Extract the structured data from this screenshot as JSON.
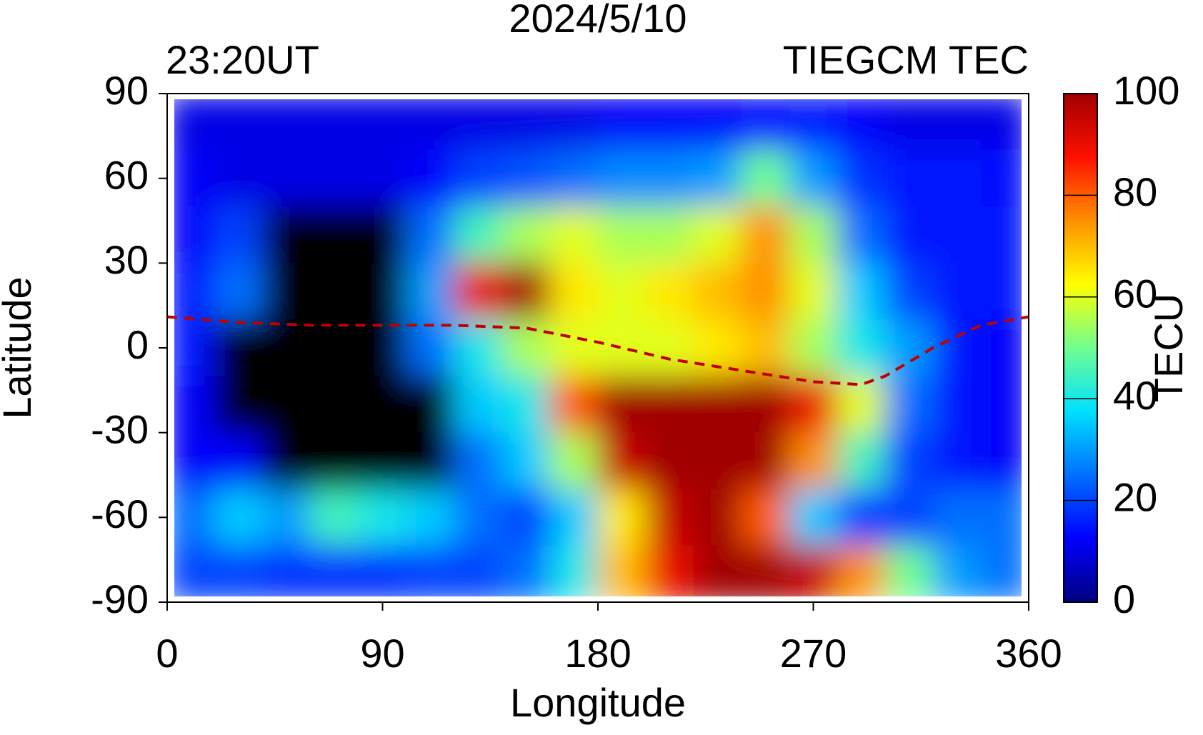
{
  "chart_data": {
    "type": "heatmap",
    "title": "2024/5/10",
    "subtitle_left": "23:20UT",
    "subtitle_right": "TIEGCM TEC",
    "xlabel": "Longitude",
    "ylabel": "Latitude",
    "xlim": [
      0,
      360
    ],
    "xticks": [
      0,
      90,
      180,
      270,
      360
    ],
    "ylim": [
      -90,
      90
    ],
    "yticks": [
      -90,
      -60,
      -30,
      0,
      30,
      60,
      90
    ],
    "x": [
      10,
      30,
      50,
      70,
      90,
      110,
      130,
      150,
      170,
      190,
      210,
      230,
      250,
      270,
      290,
      310,
      330,
      350
    ],
    "y": [
      80,
      60,
      40,
      20,
      0,
      -20,
      -40,
      -60,
      -80
    ],
    "z": [
      [
        10,
        10,
        10,
        10,
        10,
        10,
        10,
        10,
        10,
        12,
        12,
        12,
        14,
        15,
        12,
        10,
        10,
        10
      ],
      [
        12,
        10,
        10,
        10,
        10,
        12,
        20,
        22,
        25,
        28,
        28,
        30,
        50,
        30,
        18,
        15,
        15,
        14
      ],
      [
        12,
        20,
        null,
        null,
        null,
        25,
        45,
        55,
        60,
        55,
        55,
        60,
        75,
        55,
        25,
        15,
        15,
        15
      ],
      [
        15,
        25,
        null,
        null,
        null,
        30,
        90,
        100,
        65,
        60,
        65,
        70,
        75,
        60,
        35,
        20,
        15,
        15
      ],
      [
        15,
        null,
        null,
        null,
        null,
        25,
        40,
        55,
        60,
        60,
        60,
        65,
        70,
        55,
        40,
        30,
        15,
        12
      ],
      [
        12,
        null,
        null,
        null,
        null,
        null,
        35,
        40,
        80,
        100,
        100,
        100,
        100,
        90,
        60,
        25,
        15,
        12
      ],
      [
        12,
        12,
        null,
        null,
        null,
        null,
        25,
        35,
        55,
        95,
        100,
        100,
        100,
        75,
        45,
        20,
        15,
        12
      ],
      [
        25,
        35,
        30,
        45,
        40,
        35,
        25,
        20,
        35,
        65,
        95,
        100,
        80,
        35,
        20,
        20,
        25,
        25
      ],
      [
        20,
        20,
        18,
        18,
        18,
        20,
        20,
        25,
        40,
        70,
        90,
        100,
        100,
        95,
        75,
        50,
        30,
        25
      ]
    ],
    "missing_color": "#000000",
    "colormap": [
      "#00007f",
      "#0000ff",
      "#0070ff",
      "#00e0ff",
      "#70ff90",
      "#ffff00",
      "#ff9000",
      "#ff1000",
      "#a00000"
    ],
    "clim": [
      0,
      100
    ],
    "cbticks": [
      0,
      20,
      40,
      60,
      80,
      100
    ],
    "cblabel": "TECU",
    "equator": {
      "color": "#c00000",
      "x": [
        0,
        30,
        60,
        90,
        120,
        150,
        180,
        210,
        240,
        270,
        290,
        300,
        320,
        340,
        360
      ],
      "y": [
        11,
        9,
        8,
        8,
        8,
        7,
        2,
        -4,
        -8,
        -12,
        -13,
        -10,
        0,
        8,
        11
      ]
    }
  }
}
